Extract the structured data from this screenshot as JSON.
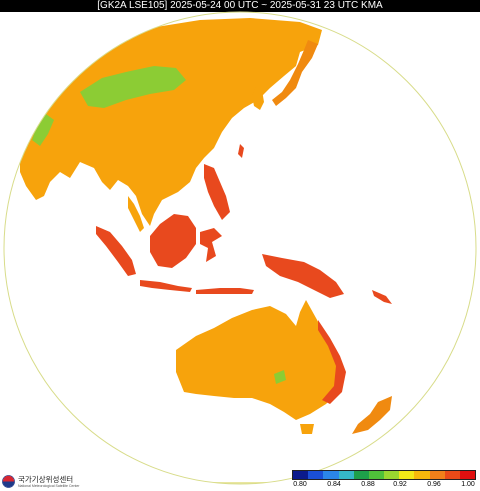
{
  "header": {
    "title": "[GK2A LSE105] 2025-05-24 00 UTC ~ 2025-05-31 23 UTC KMA"
  },
  "map": {
    "ocean_color": "#ffffff",
    "limb_color": "#d8dc8a",
    "colors": {
      "land_main": "#f7a30c",
      "land_red": "#e8491e",
      "land_green": "#8ccc34",
      "land_dark_orange": "#f08a10"
    }
  },
  "colorbar": {
    "colors": [
      "#0b1a8c",
      "#1a4fd6",
      "#2b86e8",
      "#35b8c8",
      "#1ea04a",
      "#4fc23a",
      "#9ad830",
      "#f2e818",
      "#f7b80c",
      "#f0801a",
      "#e84a18",
      "#e01010"
    ],
    "tick_labels": [
      "0.80",
      "0.84",
      "0.88",
      "0.92",
      "0.96",
      "1.00"
    ]
  },
  "logo": {
    "name": "국가기상위성센터",
    "subtitle": "National Meteorological Satellite Center"
  }
}
